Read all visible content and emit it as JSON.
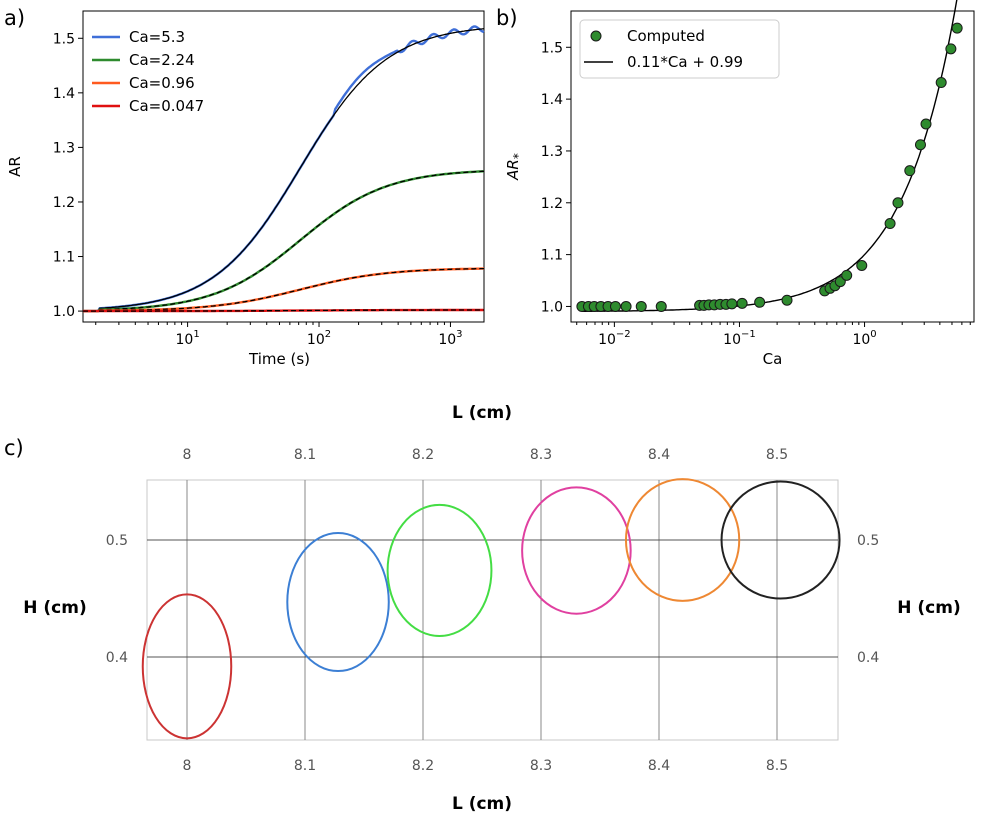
{
  "chart_data": [
    {
      "panel": "a)",
      "type": "line",
      "xlabel": "Time (s)",
      "ylabel": "AR",
      "xscale": "log",
      "xlim": [
        1.6,
        1800
      ],
      "ylim": [
        0.98,
        1.55
      ],
      "xticks": [
        {
          "value": 10,
          "base": "10",
          "exp": "1"
        },
        {
          "value": 100,
          "base": "10",
          "exp": "2"
        },
        {
          "value": 1000,
          "base": "10",
          "exp": "3"
        }
      ],
      "yticks": [
        "1.0",
        "1.1",
        "1.2",
        "1.3",
        "1.4",
        "1.5"
      ],
      "legend_position": "top-left",
      "series": [
        {
          "name": "Ca=5.3",
          "color": "#3f6fd8",
          "plateau": 1.525
        },
        {
          "name": "Ca=2.24",
          "color": "#2e8b2e",
          "plateau": 1.26
        },
        {
          "name": "Ca=0.96",
          "color": "#ff5a1f",
          "plateau": 1.079
        },
        {
          "name": "Ca=0.047",
          "color": "#e01010",
          "plateau": 1.002
        }
      ],
      "fit_color": "#000000"
    },
    {
      "panel": "b)",
      "type": "scatter",
      "xlabel": "Ca",
      "ylabel": "AR*",
      "xscale": "log",
      "xlim": [
        0.0045,
        7.5
      ],
      "ylim": [
        0.97,
        1.57
      ],
      "xticks": [
        {
          "value": 0.01,
          "base": "10",
          "exp": "−2"
        },
        {
          "value": 0.1,
          "base": "10",
          "exp": "−1"
        },
        {
          "value": 1,
          "base": "10",
          "exp": "0"
        }
      ],
      "yticks": [
        "1.0",
        "1.1",
        "1.2",
        "1.3",
        "1.4",
        "1.5"
      ],
      "legend_position": "top-left",
      "legend": [
        "Computed",
        "0.11*Ca + 0.99"
      ],
      "point_color": "#2e8b2e",
      "points": [
        [
          0.0055,
          1.0
        ],
        [
          0.0062,
          1.0
        ],
        [
          0.0069,
          1.0
        ],
        [
          0.0078,
          1.0
        ],
        [
          0.0089,
          1.0
        ],
        [
          0.0102,
          1.0
        ],
        [
          0.0124,
          1.0
        ],
        [
          0.0164,
          1.0
        ],
        [
          0.0237,
          1.0
        ],
        [
          0.048,
          1.002
        ],
        [
          0.052,
          1.002
        ],
        [
          0.057,
          1.003
        ],
        [
          0.063,
          1.003
        ],
        [
          0.07,
          1.004
        ],
        [
          0.078,
          1.004
        ],
        [
          0.087,
          1.005
        ],
        [
          0.105,
          1.006
        ],
        [
          0.145,
          1.008
        ],
        [
          0.24,
          1.012
        ],
        [
          0.48,
          1.03
        ],
        [
          0.53,
          1.035
        ],
        [
          0.58,
          1.04
        ],
        [
          0.64,
          1.048
        ],
        [
          0.72,
          1.06
        ],
        [
          0.95,
          1.079
        ],
        [
          1.6,
          1.16
        ],
        [
          1.85,
          1.2
        ],
        [
          2.3,
          1.262
        ],
        [
          2.8,
          1.312
        ],
        [
          3.1,
          1.352
        ],
        [
          4.1,
          1.432
        ],
        [
          4.9,
          1.497
        ],
        [
          5.5,
          1.537
        ]
      ],
      "fit": {
        "slope": 0.11,
        "intercept": 0.99
      }
    },
    {
      "panel": "c)",
      "type": "scatter",
      "xlabel": "L (cm)",
      "ylabel": "H (cm)",
      "xlim": [
        7.97,
        8.555
      ],
      "ylim": [
        0.333,
        0.552
      ],
      "xticks": [
        "8",
        "8.1",
        "8.2",
        "8.3",
        "8.4",
        "8.5"
      ],
      "yticks": [
        "0.4",
        "0.5"
      ],
      "ellipses": [
        {
          "cx": 8.0,
          "cy": 0.392,
          "rx": 0.0375,
          "ry": 0.0615,
          "color": "#cc3333"
        },
        {
          "cx": 8.128,
          "cy": 0.447,
          "rx": 0.043,
          "ry": 0.059,
          "color": "#3c7fd4"
        },
        {
          "cx": 8.214,
          "cy": 0.474,
          "rx": 0.044,
          "ry": 0.056,
          "color": "#44dd44"
        },
        {
          "cx": 8.33,
          "cy": 0.491,
          "rx": 0.046,
          "ry": 0.054,
          "color": "#e040a0"
        },
        {
          "cx": 8.42,
          "cy": 0.5,
          "rx": 0.048,
          "ry": 0.052,
          "color": "#ee8833"
        },
        {
          "cx": 8.503,
          "cy": 0.5,
          "rx": 0.05,
          "ry": 0.05,
          "color": "#222222"
        }
      ]
    }
  ]
}
